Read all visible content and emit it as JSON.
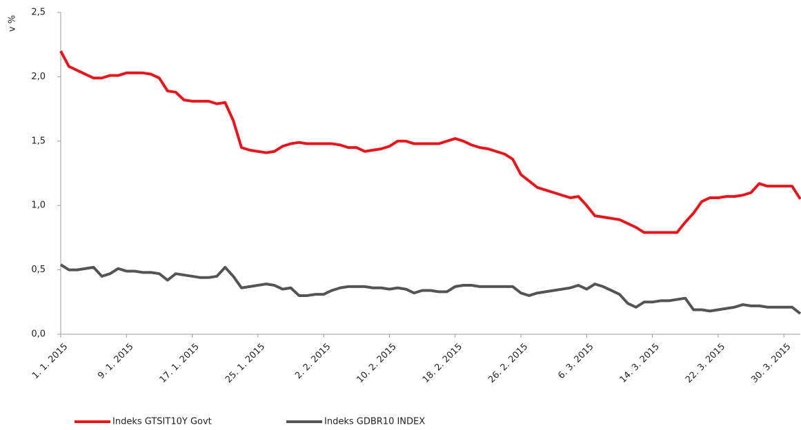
{
  "chart_data": {
    "type": "line",
    "ylabel": "v %",
    "categories": [
      "1. 1. 2015",
      null,
      null,
      null,
      null,
      null,
      null,
      null,
      "9. 1. 2015",
      null,
      null,
      null,
      null,
      null,
      null,
      null,
      "17. 1. 2015",
      null,
      null,
      null,
      null,
      null,
      null,
      null,
      "25. 1. 2015",
      null,
      null,
      null,
      null,
      null,
      null,
      null,
      "2. 2. 2015",
      null,
      null,
      null,
      null,
      null,
      null,
      null,
      "10. 2. 2015",
      null,
      null,
      null,
      null,
      null,
      null,
      null,
      "18. 2. 2015",
      null,
      null,
      null,
      null,
      null,
      null,
      null,
      "26. 2. 2015",
      null,
      null,
      null,
      null,
      null,
      null,
      null,
      "6. 3. 2015",
      null,
      null,
      null,
      null,
      null,
      null,
      null,
      "14. 3. 2015",
      null,
      null,
      null,
      null,
      null,
      null,
      null,
      "22. 3. 2015",
      null,
      null,
      null,
      null,
      null,
      null,
      null,
      "30. 3. 2015",
      null,
      null
    ],
    "series": [
      {
        "name": "Indeks GTSIT10Y Govt",
        "color": "#e8151b",
        "values": [
          2.2,
          2.08,
          2.05,
          2.02,
          1.99,
          1.99,
          2.01,
          2.01,
          2.03,
          2.03,
          2.03,
          2.02,
          1.99,
          1.89,
          1.88,
          1.82,
          1.81,
          1.81,
          1.81,
          1.79,
          1.8,
          1.66,
          1.45,
          1.43,
          1.42,
          1.41,
          1.42,
          1.46,
          1.48,
          1.49,
          1.48,
          1.48,
          1.48,
          1.48,
          1.47,
          1.45,
          1.45,
          1.42,
          1.43,
          1.44,
          1.46,
          1.5,
          1.5,
          1.48,
          1.48,
          1.48,
          1.48,
          1.5,
          1.52,
          1.5,
          1.47,
          1.45,
          1.44,
          1.42,
          1.4,
          1.36,
          1.24,
          1.19,
          1.14,
          1.12,
          1.1,
          1.08,
          1.06,
          1.07,
          1.0,
          0.92,
          0.91,
          0.9,
          0.89,
          0.86,
          0.83,
          0.79,
          0.79,
          0.79,
          0.79,
          0.79,
          0.87,
          0.94,
          1.03,
          1.06,
          1.06,
          1.07,
          1.07,
          1.08,
          1.1,
          1.17,
          1.15,
          1.15,
          1.15,
          1.15,
          1.05
        ]
      },
      {
        "name": "Indeks GDBR10 INDEX",
        "color": "#545454",
        "values": [
          0.54,
          0.5,
          0.5,
          0.51,
          0.52,
          0.45,
          0.47,
          0.51,
          0.49,
          0.49,
          0.48,
          0.48,
          0.47,
          0.42,
          0.47,
          0.46,
          0.45,
          0.44,
          0.44,
          0.45,
          0.52,
          0.45,
          0.36,
          0.37,
          0.38,
          0.39,
          0.38,
          0.35,
          0.36,
          0.3,
          0.3,
          0.31,
          0.31,
          0.34,
          0.36,
          0.37,
          0.37,
          0.37,
          0.36,
          0.36,
          0.35,
          0.36,
          0.35,
          0.32,
          0.34,
          0.34,
          0.33,
          0.33,
          0.37,
          0.38,
          0.38,
          0.37,
          0.37,
          0.37,
          0.37,
          0.37,
          0.32,
          0.3,
          0.32,
          0.33,
          0.34,
          0.35,
          0.36,
          0.38,
          0.35,
          0.39,
          0.37,
          0.34,
          0.31,
          0.24,
          0.21,
          0.25,
          0.25,
          0.26,
          0.26,
          0.27,
          0.28,
          0.19,
          0.19,
          0.18,
          0.19,
          0.2,
          0.21,
          0.23,
          0.22,
          0.22,
          0.21,
          0.21,
          0.21,
          0.21,
          0.16
        ]
      }
    ],
    "ylim": [
      0,
      2.5
    ],
    "yticks": [
      {
        "value": 0,
        "label": "0,0"
      },
      {
        "value": 0.5,
        "label": "0,5"
      },
      {
        "value": 1,
        "label": "1,0"
      },
      {
        "value": 1.5,
        "label": "1,5"
      },
      {
        "value": 2,
        "label": "2,0"
      },
      {
        "value": 2.5,
        "label": "2,5"
      }
    ],
    "grid": false,
    "legend": "bottom"
  }
}
